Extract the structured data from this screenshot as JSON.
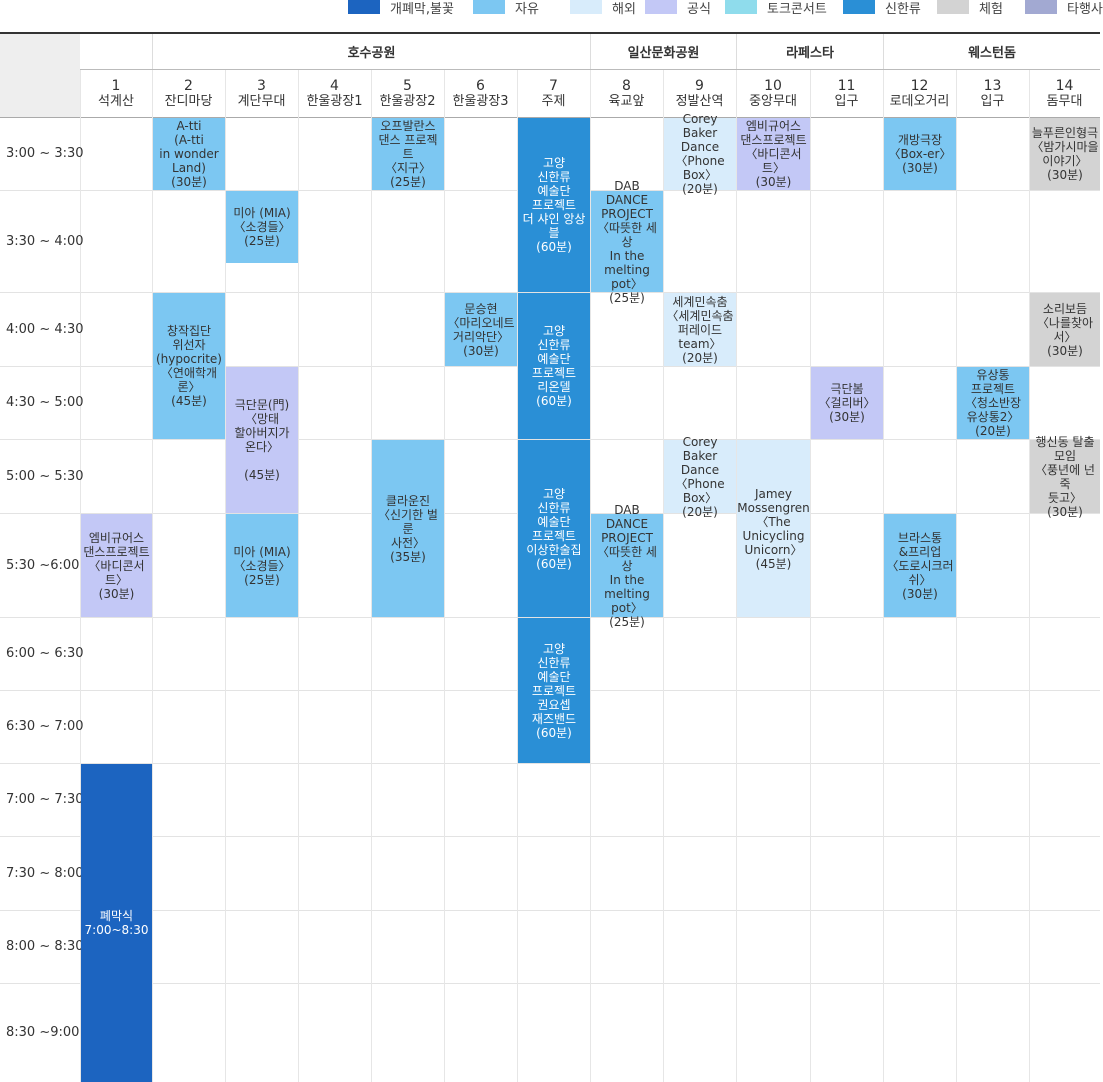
{
  "legend": [
    {
      "label": "개폐막,불꽃",
      "color": "#1c64c0"
    },
    {
      "label": "자유",
      "color": "#7cc7f2"
    },
    {
      "label": "해외",
      "color": "#d8ecfb"
    },
    {
      "label": "공식",
      "color": "#c3c8f6"
    },
    {
      "label": "토크콘서트",
      "color": "#8fdcec"
    },
    {
      "label": "신한류",
      "color": "#2a8fd6"
    },
    {
      "label": "체험",
      "color": "#d3d3d3"
    },
    {
      "label": "타행사",
      "color": "#a2a9d2"
    }
  ],
  "venues": [
    {
      "name": "호수공원"
    },
    {
      "name": "일산문화공원"
    },
    {
      "name": "라페스타"
    },
    {
      "name": "웨스턴돔"
    }
  ],
  "columns": [
    {
      "num": "1",
      "name": "석계산"
    },
    {
      "num": "2",
      "name": "잔디마당"
    },
    {
      "num": "3",
      "name": "계단무대"
    },
    {
      "num": "4",
      "name": "한울광장1"
    },
    {
      "num": "5",
      "name": "한울광장2"
    },
    {
      "num": "6",
      "name": "한울광장3"
    },
    {
      "num": "7",
      "name": "주제"
    },
    {
      "num": "8",
      "name": "육교앞"
    },
    {
      "num": "9",
      "name": "정발산역"
    },
    {
      "num": "10",
      "name": "중앙무대"
    },
    {
      "num": "11",
      "name": "입구"
    },
    {
      "num": "12",
      "name": "로데오거리"
    },
    {
      "num": "13",
      "name": "입구"
    },
    {
      "num": "14",
      "name": "돔무대"
    }
  ],
  "times": [
    "3:00 ~ 3:30",
    "3:30 ~ 4:00",
    "4:00 ~ 4:30",
    "4:30 ~ 5:00",
    "5:00 ~ 5:30",
    "5:30 ~6:00",
    "6:00 ~ 6:30",
    "6:30 ~ 7:00",
    "7:00 ~ 7:30",
    "7:30 ~ 8:00",
    "8:00 ~ 8:30",
    "8:30 ~9:00"
  ],
  "events": [
    {
      "text": "A-tti\n(A-tti\nin wonder\nLand)\n(30분)",
      "type": "free"
    },
    {
      "text": "오프발란스\n댄스 프로젝트\n〈지구〉\n(25분)",
      "type": "free"
    },
    {
      "text": "고양\n신한류\n예술단\n프로젝트\n더 샤인 앙상블\n(60분)",
      "type": "shinhan"
    },
    {
      "text": "Corey Baker\nDance\n〈Phone Box〉\n(20분)",
      "type": "abroad"
    },
    {
      "text": "엠비규어스\n댄스프로젝트\n〈바디콘서트〉\n(30분)",
      "type": "official"
    },
    {
      "text": "개방극장\n〈Box-er〉\n(30분)",
      "type": "free"
    },
    {
      "text": "늘푸른인형극\n〈밤가시마을\n이야기〉\n(30분)",
      "type": "exp"
    },
    {
      "text": "미아 (MIA)\n〈소경들〉\n(25분)",
      "type": "free"
    },
    {
      "text": "DAB DANCE\nPROJECT\n〈따뜻한 세상\nIn the\nmelting pot〉\n(25분)",
      "type": "free"
    },
    {
      "text": "창작집단\n위선자\n(hypocrite)\n〈연애학개론〉\n(45분)",
      "type": "free"
    },
    {
      "text": "문승현\n〈마리오네트\n거리악단〉\n(30분)",
      "type": "free"
    },
    {
      "text": "고양\n신한류\n예술단\n프로젝트\n리온델\n(60분)",
      "type": "shinhan"
    },
    {
      "text": "세계민속춤\n〈세계민속춤\n퍼레이드 team〉\n(20분)",
      "type": "abroad"
    },
    {
      "text": "소리보듬\n〈나를찾아서〉\n(30분)",
      "type": "exp"
    },
    {
      "text": "극단문(門)\n〈망태\n할아버지가\n온다〉\n\n(45분)",
      "type": "official"
    },
    {
      "text": "극단봄\n〈걸리버〉\n(30분)",
      "type": "official"
    },
    {
      "text": "유상통\n프로젝트\n〈청소반장\n유상통2〉\n(20분)",
      "type": "free"
    },
    {
      "text": "클라운진\n〈신기한 벌룬\n사전〉\n(35분)",
      "type": "free"
    },
    {
      "text": "고양\n신한류\n예술단\n프로젝트\n이상한술집\n(60분)",
      "type": "shinhan"
    },
    {
      "text": "Corey Baker\nDance\n〈Phone Box〉\n(20분)",
      "type": "abroad"
    },
    {
      "text": "Jamey\nMossengren\n〈The\nUnicycling\nUnicorn〉\n(45분)",
      "type": "abroad"
    },
    {
      "text": "행신동 탈출\n모임\n〈풍년에 넌죽\n듯고〉\n(30분)",
      "type": "exp"
    },
    {
      "text": "엠비규어스\n댄스프로젝트\n〈바디콘서트〉\n(30분)",
      "type": "official"
    },
    {
      "text": "미아 (MIA)\n〈소경들〉\n(25분)",
      "type": "free"
    },
    {
      "text": "DAB DANCE\nPROJECT\n〈따뜻한 세상\nIn the\nmelting pot〉\n(25분)",
      "type": "free"
    },
    {
      "text": "브라스통\n&프리업\n〈도로시크러쉬〉\n(30분)",
      "type": "free"
    },
    {
      "text": "고양\n신한류\n예술단\n프로젝트\n권요셉\n재즈밴드\n(60분)",
      "type": "shinhan"
    },
    {
      "text": "폐막식\n7:00~8:30",
      "type": "open"
    }
  ]
}
